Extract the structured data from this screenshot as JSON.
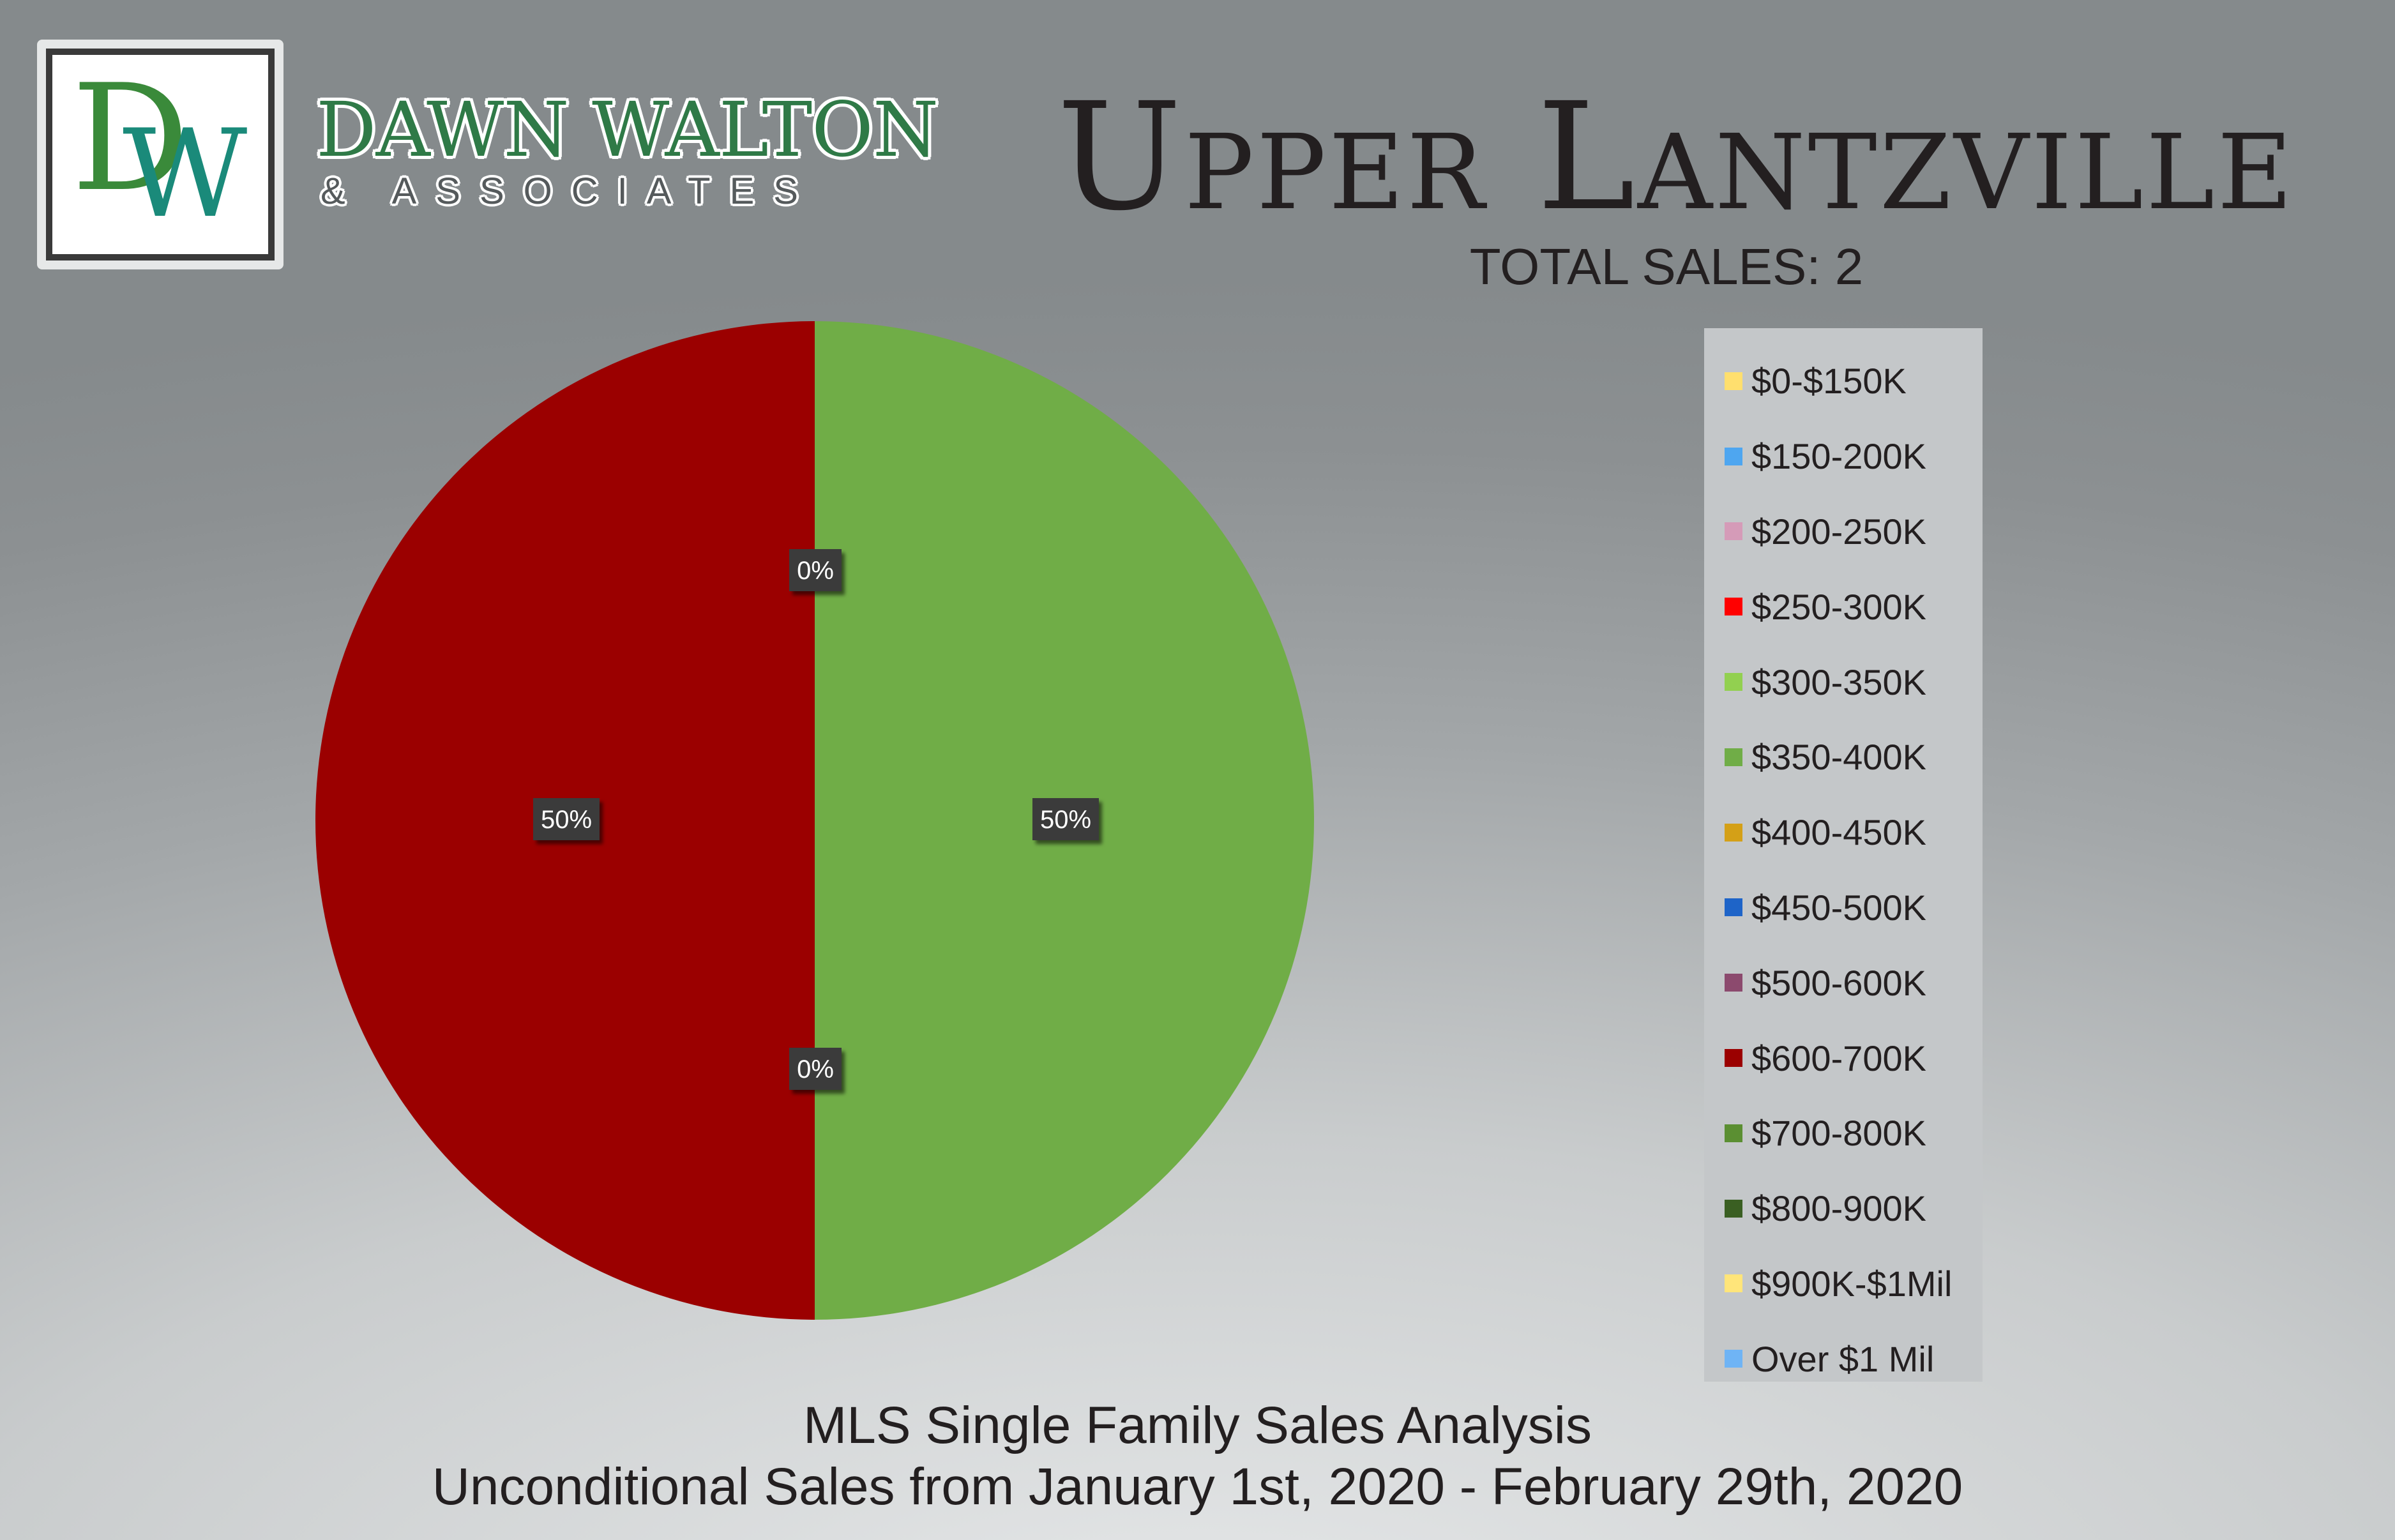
{
  "logo": {
    "letter_1": "D",
    "letter_2": "W"
  },
  "brand": {
    "name": "DAWN WALTON",
    "subline": "& ASSOCIATES"
  },
  "title": "Upper Lantzville",
  "total_sales": "TOTAL SALES: 2",
  "subtitle_1": "MLS Single Family Sales Analysis",
  "subtitle_2": "Unconditional Sales from January 1st, 2020 - February 29th, 2020",
  "colors": {
    "background": "#9a9ea0",
    "legend_bg": "#c4c7c9",
    "label_bg": "#3a3a3a"
  },
  "chart_data": {
    "type": "pie",
    "title": "Upper Lantzville",
    "legend_position": "right",
    "categories": [
      "$0-$150K",
      "$150-200K",
      "$200-250K",
      "$250-300K",
      "$300-350K",
      "$350-400K",
      "$400-450K",
      "$450-500K",
      "$500-600K",
      "$600-700K",
      "$700-800K",
      "$800-900K",
      "$900K-$1Mil",
      "Over $1 Mil"
    ],
    "values": [
      0,
      0,
      0,
      0,
      0,
      1,
      0,
      0,
      0,
      1,
      0,
      0,
      0,
      0
    ],
    "colors": [
      "#ffdf6e",
      "#4ea6f0",
      "#d59bb8",
      "#ff0000",
      "#92d050",
      "#70ad47",
      "#d4a017",
      "#1e64c8",
      "#8c4a6e",
      "#9b0000",
      "#5b8f32",
      "#3a5f22",
      "#ffe57a",
      "#6fb4f5"
    ],
    "data_labels": [
      {
        "text": "0%"
      },
      {
        "text": "50%"
      },
      {
        "text": "50%"
      },
      {
        "text": "0%"
      }
    ]
  }
}
